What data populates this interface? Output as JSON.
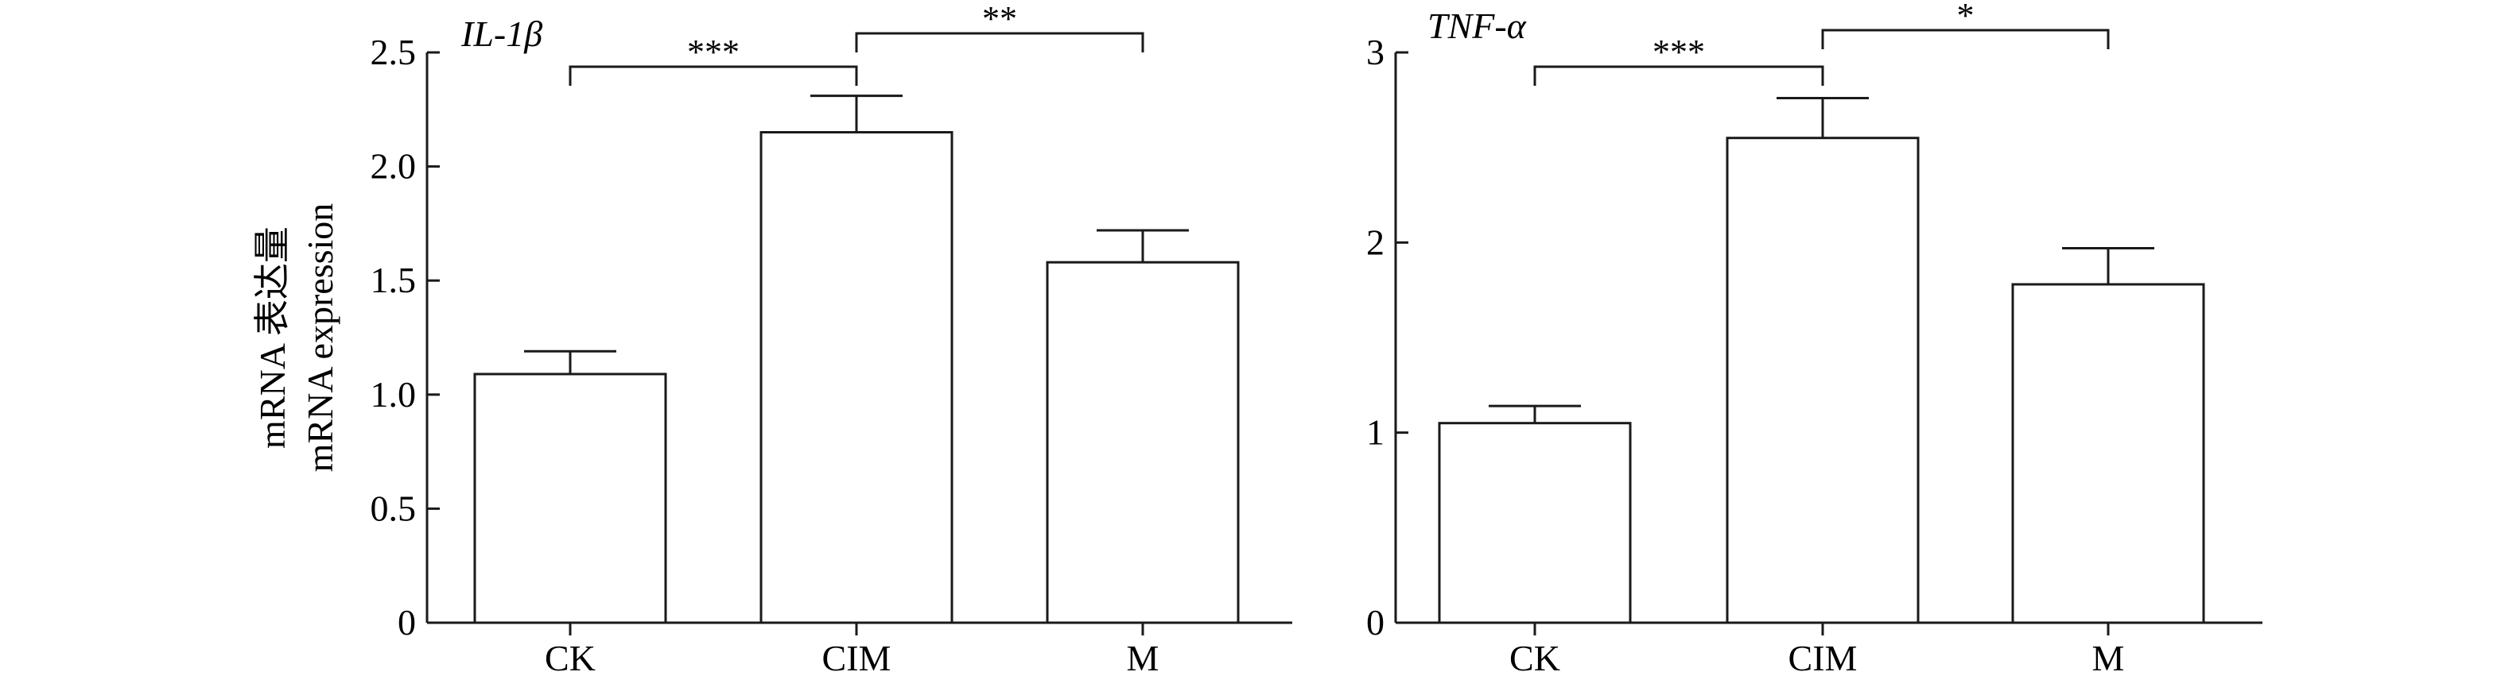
{
  "chart_data": [
    {
      "type": "bar",
      "title": "IL-1β",
      "ylabel": [
        "mRNA 表达量",
        "mRNA expression"
      ],
      "xlabel": "",
      "categories": [
        "CK",
        "CIM",
        "M"
      ],
      "values": [
        1.09,
        2.15,
        1.58
      ],
      "errors": [
        0.1,
        0.16,
        0.14
      ],
      "ylim": [
        0,
        2.5
      ],
      "yticks": [
        0,
        0.5,
        1.0,
        1.5,
        2.0,
        2.5
      ],
      "ytick_labels": [
        "0",
        "0.5",
        "1.0",
        "1.5",
        "2.0",
        "2.5"
      ],
      "grid": false,
      "significance": [
        {
          "from": 0,
          "to": 1,
          "label": "***"
        },
        {
          "from": 1,
          "to": 2,
          "label": "**"
        }
      ]
    },
    {
      "type": "bar",
      "title": "TNF-α",
      "ylabel": "",
      "xlabel": "",
      "categories": [
        "CK",
        "CIM",
        "M"
      ],
      "values": [
        1.05,
        2.55,
        1.78
      ],
      "errors": [
        0.09,
        0.21,
        0.19
      ],
      "ylim": [
        0,
        3
      ],
      "yticks": [
        0,
        1,
        2,
        3
      ],
      "ytick_labels": [
        "0",
        "1",
        "2",
        "3"
      ],
      "grid": false,
      "significance": [
        {
          "from": 0,
          "to": 1,
          "label": "***"
        },
        {
          "from": 1,
          "to": 2,
          "label": "*"
        }
      ]
    }
  ]
}
